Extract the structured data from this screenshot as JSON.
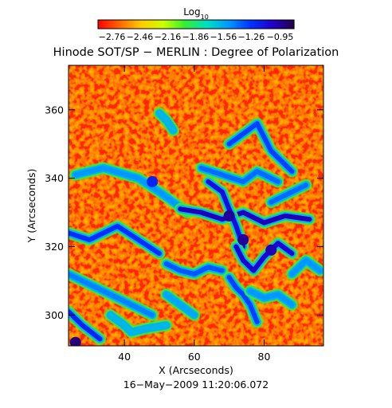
{
  "chart_data": {
    "type": "heatmap",
    "title": "Hinode SOT/SP − MERLIN : Degree of Polarization",
    "subtitle": "16−May−2009 11:20:06.072",
    "xlabel": "X (Arcseconds)",
    "ylabel": "Y (Arcseconds)",
    "xlim": [
      24,
      97
    ],
    "ylim": [
      291,
      373
    ],
    "x_ticks": [
      40,
      60,
      80
    ],
    "y_ticks": [
      300,
      320,
      340,
      360
    ],
    "colorbar": {
      "label_base": "Log",
      "label_sub": "10",
      "range": [
        -2.91,
        -0.8
      ],
      "tick_values": [
        -2.76,
        -2.46,
        -2.16,
        -1.86,
        -1.56,
        -1.26,
        -0.95
      ],
      "tick_labels": [
        "−2.76",
        "−2.46",
        "−2.16",
        "−1.86",
        "−1.56",
        "−1.26",
        "−0.95"
      ],
      "colormap": [
        "#ff0000",
        "#ff6600",
        "#ffcc00",
        "#ccff00",
        "#33ee33",
        "#00e0c0",
        "#0099ff",
        "#0033ff",
        "#2200cc",
        "#220044"
      ]
    },
    "field_features": {
      "background_log_value": -2.7,
      "network_lanes": [
        {
          "x": [
            24,
            30,
            38,
            44,
            50
          ],
          "y": [
            324,
            322,
            326,
            322,
            318
          ],
          "log_value": -1.25
        },
        {
          "x": [
            24,
            30,
            36,
            42,
            48
          ],
          "y": [
            312,
            309,
            306,
            303,
            300
          ],
          "log_value": -1.45
        },
        {
          "x": [
            24,
            28,
            33
          ],
          "y": [
            301,
            297,
            293
          ],
          "log_value": -1.2
        },
        {
          "x": [
            26,
            34,
            44,
            50,
            54,
            58
          ],
          "y": [
            341,
            343,
            340,
            336,
            333,
            330
          ],
          "log_value": -1.5
        },
        {
          "x": [
            56,
            62,
            68,
            74,
            80,
            86,
            93
          ],
          "y": [
            331,
            330,
            328,
            330,
            327,
            329,
            328
          ],
          "log_value": -1.0
        },
        {
          "x": [
            64,
            68,
            70,
            72,
            74
          ],
          "y": [
            339,
            336,
            331,
            326,
            320
          ],
          "log_value": -1.1
        },
        {
          "x": [
            72,
            74,
            77,
            80,
            84,
            88
          ],
          "y": [
            320,
            316,
            313,
            317,
            321,
            318
          ],
          "log_value": -1.05
        },
        {
          "x": [
            52,
            56,
            60,
            64,
            68
          ],
          "y": [
            315,
            313,
            312,
            314,
            313
          ],
          "log_value": -1.35
        },
        {
          "x": [
            70,
            72,
            74,
            76,
            78
          ],
          "y": [
            311,
            308,
            306,
            303,
            298
          ],
          "log_value": -1.3
        },
        {
          "x": [
            70,
            74,
            78,
            80,
            82,
            85,
            88
          ],
          "y": [
            350,
            353,
            356,
            352,
            348,
            345,
            342
          ],
          "log_value": -1.3
        },
        {
          "x": [
            62,
            68,
            74,
            78,
            84
          ],
          "y": [
            343,
            341,
            339,
            342,
            339
          ],
          "log_value": -1.4
        },
        {
          "x": [
            76,
            80,
            84,
            88
          ],
          "y": [
            307,
            305,
            306,
            303
          ],
          "log_value": -1.5
        },
        {
          "x": [
            82,
            86,
            92
          ],
          "y": [
            333,
            335,
            338
          ],
          "log_value": -1.4
        },
        {
          "x": [
            52,
            56,
            60
          ],
          "y": [
            306,
            303,
            300
          ],
          "log_value": -1.55
        },
        {
          "x": [
            36,
            40,
            42,
            46,
            52
          ],
          "y": [
            300,
            297,
            295,
            296,
            297
          ],
          "log_value": -1.6
        },
        {
          "x": [
            88,
            92,
            96
          ],
          "y": [
            312,
            316,
            313
          ],
          "log_value": -1.5
        },
        {
          "x": [
            50,
            52,
            54
          ],
          "y": [
            359,
            357,
            354
          ],
          "log_value": -1.6
        }
      ],
      "blobs": [
        {
          "x": 74,
          "y": 322,
          "log_value": -0.95
        },
        {
          "x": 70,
          "y": 329,
          "log_value": -0.95
        },
        {
          "x": 26,
          "y": 292,
          "log_value": -0.9
        },
        {
          "x": 82,
          "y": 319,
          "log_value": -1.0
        },
        {
          "x": 48,
          "y": 339,
          "log_value": -1.2
        }
      ]
    }
  }
}
